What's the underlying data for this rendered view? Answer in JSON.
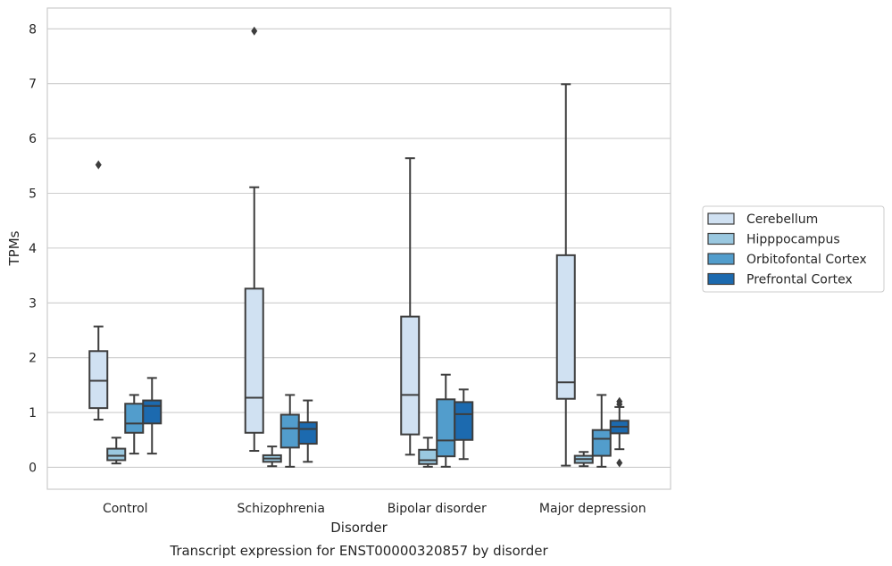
{
  "chart_data": {
    "type": "boxplot",
    "caption": "Transcript expression for ENST00000320857 by disorder",
    "xlabel": "Disorder",
    "ylabel": "TPMs",
    "ylim": [
      -0.4,
      8.38
    ],
    "yticks": [
      0,
      1,
      2,
      3,
      4,
      5,
      6,
      7,
      8
    ],
    "grid": true,
    "legend_position": "right",
    "categories": [
      "Control",
      "Schizophrenia",
      "Bipolar disorder",
      "Major depression"
    ],
    "series": [
      {
        "name": "Cerebellum",
        "color": "#d0e1f2",
        "boxes": [
          {
            "whisker_low": 0.87,
            "q1": 1.08,
            "median": 1.58,
            "q3": 2.12,
            "whisker_high": 2.57,
            "outliers": [
              5.52
            ]
          },
          {
            "whisker_low": 0.3,
            "q1": 0.63,
            "median": 1.27,
            "q3": 3.26,
            "whisker_high": 5.11,
            "outliers": [
              7.96
            ]
          },
          {
            "whisker_low": 0.23,
            "q1": 0.6,
            "median": 1.32,
            "q3": 2.75,
            "whisker_high": 5.64,
            "outliers": []
          },
          {
            "whisker_low": 0.03,
            "q1": 1.25,
            "median": 1.55,
            "q3": 3.87,
            "whisker_high": 6.99,
            "outliers": []
          }
        ]
      },
      {
        "name": "Hipppocampus",
        "color": "#9ac8e0",
        "boxes": [
          {
            "whisker_low": 0.07,
            "q1": 0.13,
            "median": 0.21,
            "q3": 0.34,
            "whisker_high": 0.54,
            "outliers": []
          },
          {
            "whisker_low": 0.02,
            "q1": 0.1,
            "median": 0.16,
            "q3": 0.22,
            "whisker_high": 0.38,
            "outliers": []
          },
          {
            "whisker_low": 0.01,
            "q1": 0.06,
            "median": 0.13,
            "q3": 0.32,
            "whisker_high": 0.54,
            "outliers": []
          },
          {
            "whisker_low": 0.02,
            "q1": 0.08,
            "median": 0.15,
            "q3": 0.21,
            "whisker_high": 0.28,
            "outliers": []
          }
        ]
      },
      {
        "name": "Orbitofontal Cortex",
        "color": "#529dcc",
        "boxes": [
          {
            "whisker_low": 0.25,
            "q1": 0.63,
            "median": 0.8,
            "q3": 1.16,
            "whisker_high": 1.32,
            "outliers": []
          },
          {
            "whisker_low": 0.01,
            "q1": 0.36,
            "median": 0.71,
            "q3": 0.96,
            "whisker_high": 1.32,
            "outliers": []
          },
          {
            "whisker_low": 0.01,
            "q1": 0.2,
            "median": 0.49,
            "q3": 1.24,
            "whisker_high": 1.69,
            "outliers": []
          },
          {
            "whisker_low": 0.01,
            "q1": 0.21,
            "median": 0.52,
            "q3": 0.68,
            "whisker_high": 1.32,
            "outliers": []
          }
        ]
      },
      {
        "name": "Prefrontal Cortex",
        "color": "#1c6aaf",
        "boxes": [
          {
            "whisker_low": 0.25,
            "q1": 0.8,
            "median": 1.12,
            "q3": 1.22,
            "whisker_high": 1.63,
            "outliers": []
          },
          {
            "whisker_low": 0.1,
            "q1": 0.43,
            "median": 0.7,
            "q3": 0.82,
            "whisker_high": 1.22,
            "outliers": []
          },
          {
            "whisker_low": 0.15,
            "q1": 0.5,
            "median": 0.97,
            "q3": 1.19,
            "whisker_high": 1.42,
            "outliers": []
          },
          {
            "whisker_low": 0.33,
            "q1": 0.62,
            "median": 0.74,
            "q3": 0.85,
            "whisker_high": 1.1,
            "outliers": [
              1.2,
              1.15,
              0.08
            ]
          }
        ]
      }
    ]
  }
}
